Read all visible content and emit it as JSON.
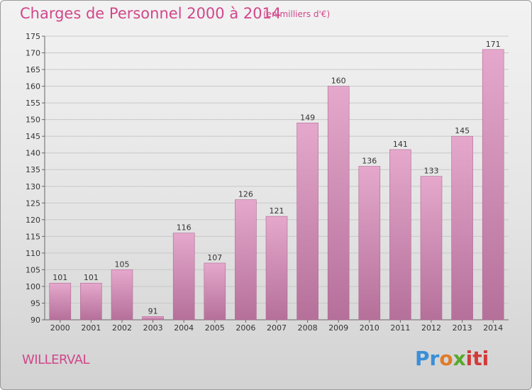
{
  "title": "Charges de Personnel 2000 à 2014",
  "subtitle": "(en milliers d'€)",
  "commune": "WILLERVAL",
  "logo": {
    "part1": "Pr",
    "part2": "o",
    "part3": "x",
    "part4": "iti"
  },
  "colors": {
    "bar": "#dd97bf",
    "title": "#d1478a"
  },
  "chart_data": {
    "type": "bar",
    "title": "Charges de Personnel 2000 à 2014",
    "subtitle": "(en milliers d'€)",
    "categories": [
      "2000",
      "2001",
      "2002",
      "2003",
      "2004",
      "2005",
      "2006",
      "2007",
      "2008",
      "2009",
      "2010",
      "2011",
      "2012",
      "2013",
      "2014"
    ],
    "values": [
      101,
      101,
      105,
      91,
      116,
      107,
      126,
      121,
      149,
      160,
      136,
      141,
      133,
      145,
      171
    ],
    "ylim": [
      90,
      175
    ],
    "yticks": [
      90,
      95,
      100,
      105,
      110,
      115,
      120,
      125,
      130,
      135,
      140,
      145,
      150,
      155,
      160,
      165,
      170,
      175
    ],
    "grid": true,
    "xlabel": "",
    "ylabel": ""
  }
}
